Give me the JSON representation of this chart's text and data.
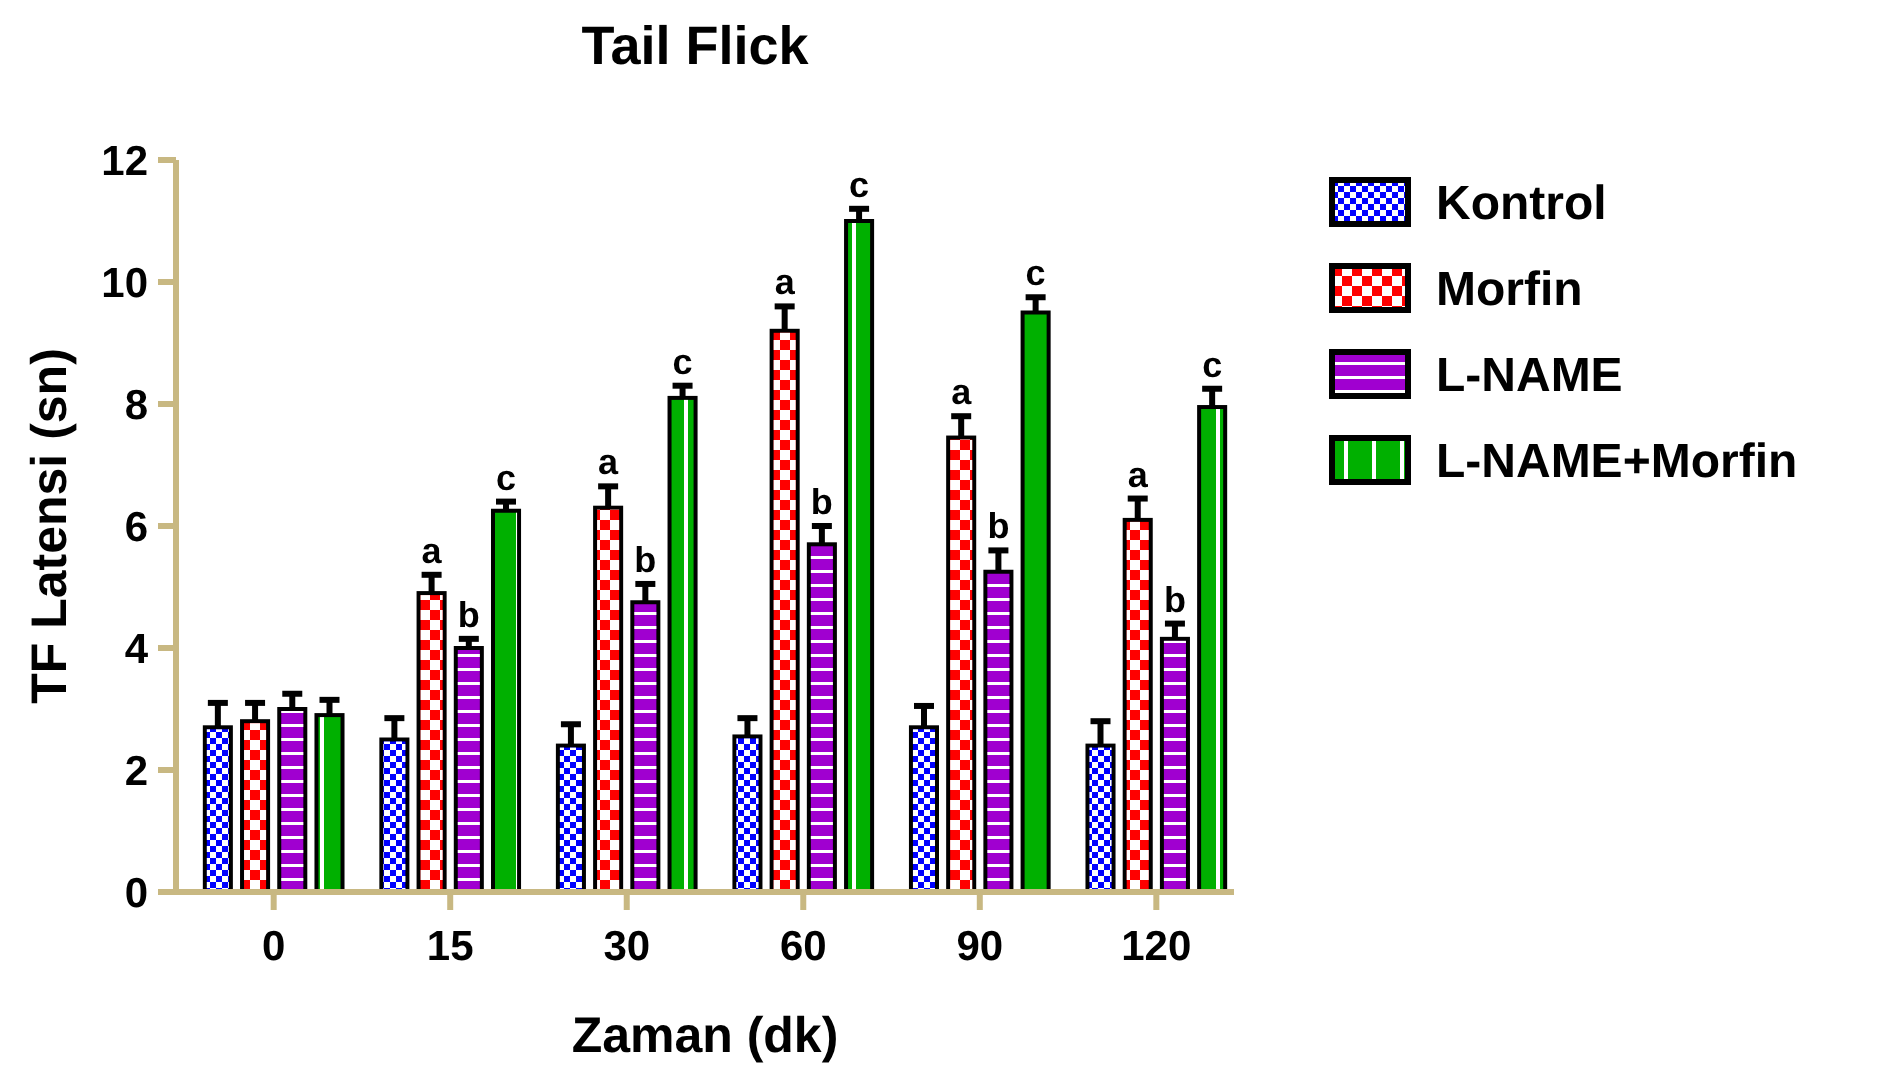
{
  "chart_data": {
    "type": "bar",
    "title": "Tail Flick",
    "xlabel": "Zaman (dk)",
    "ylabel": "TF Latensi (sn)",
    "categories": [
      "0",
      "15",
      "30",
      "60",
      "90",
      "120"
    ],
    "series": [
      {
        "name": "Kontrol",
        "color": "#0000ff",
        "values": [
          2.7,
          2.5,
          2.4,
          2.55,
          2.7,
          2.4
        ],
        "errors": [
          [
            2.7,
            3.1
          ],
          [
            2.5,
            2.85
          ],
          [
            2.4,
            2.75
          ],
          [
            2.55,
            2.85
          ],
          [
            2.7,
            3.05
          ],
          [
            2.4,
            2.8
          ]
        ]
      },
      {
        "name": "Morfin",
        "color": "#ff0000",
        "values": [
          2.8,
          4.9,
          6.3,
          9.2,
          7.45,
          6.1
        ],
        "errors": [
          [
            2.8,
            3.1
          ],
          [
            4.9,
            5.2
          ],
          [
            6.3,
            6.65
          ],
          [
            9.2,
            9.6
          ],
          [
            7.45,
            7.8
          ],
          [
            6.1,
            6.45
          ]
        ],
        "value_labels": [
          null,
          "a",
          "a",
          "a",
          "a",
          "a"
        ]
      },
      {
        "name": "L-NAME",
        "color": "#a000d0",
        "values": [
          3.0,
          4.0,
          4.75,
          5.7,
          5.25,
          4.15
        ],
        "errors": [
          [
            3.0,
            3.25
          ],
          [
            4.0,
            4.15
          ],
          [
            4.75,
            5.05
          ],
          [
            5.7,
            6.0
          ],
          [
            5.25,
            5.6
          ],
          [
            4.15,
            4.4
          ]
        ],
        "value_labels": [
          null,
          "b",
          "b",
          "b",
          "b",
          "b"
        ]
      },
      {
        "name": "L-NAME+Morfin",
        "color": "#00b000",
        "values": [
          2.9,
          6.25,
          8.1,
          11.0,
          9.5,
          7.95
        ],
        "errors": [
          [
            2.9,
            3.15
          ],
          [
            6.25,
            6.4
          ],
          [
            8.1,
            8.3
          ],
          [
            11.0,
            11.2
          ],
          [
            9.5,
            9.75
          ],
          [
            7.95,
            8.25
          ]
        ],
        "value_labels": [
          null,
          "c",
          "c",
          "c",
          "c",
          "c"
        ]
      }
    ],
    "ylim": [
      0,
      12
    ],
    "yticks": [
      0,
      2,
      4,
      6,
      8,
      10,
      12
    ],
    "legend": "right",
    "grid": false
  }
}
